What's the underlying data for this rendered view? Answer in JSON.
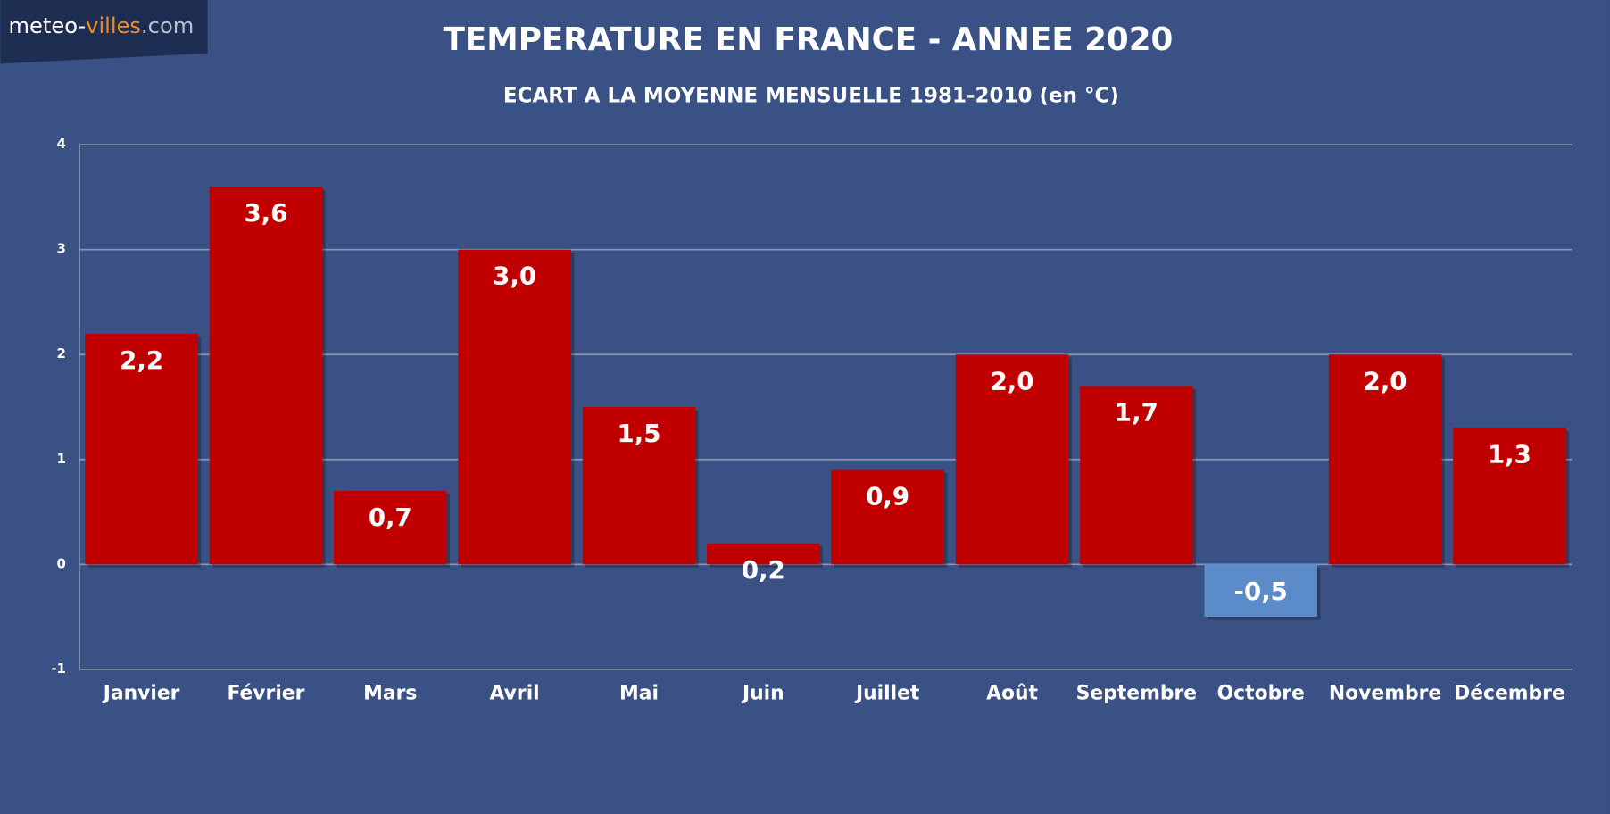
{
  "logo": [
    "meteo-",
    "villes",
    ".com"
  ],
  "chart_data": {
    "type": "bar",
    "title": "TEMPERATURE EN FRANCE - ANNEE 2020",
    "subtitle": "ECART A LA MOYENNE MENSUELLE 1981-2010 (en °C)",
    "categories": [
      "Janvier",
      "Février",
      "Mars",
      "Avril",
      "Mai",
      "Juin",
      "Juillet",
      "Août",
      "Septembre",
      "Octobre",
      "Novembre",
      "Décembre"
    ],
    "values": [
      2.2,
      3.6,
      0.7,
      3.0,
      1.5,
      0.2,
      0.9,
      2.0,
      1.7,
      -0.5,
      2.0,
      1.3
    ],
    "value_labels": [
      "2,2",
      "3,6",
      "0,7",
      "3,0",
      "1,5",
      "0,2",
      "0,9",
      "2,0",
      "1,7",
      "-0,5",
      "2,0",
      "1,3"
    ],
    "color": "#c00000",
    "negative_color": "#5b8bc9",
    "ylim": [
      -1,
      4
    ],
    "yticks": [
      -1,
      0,
      1,
      2,
      3,
      4
    ],
    "grid": true
  }
}
